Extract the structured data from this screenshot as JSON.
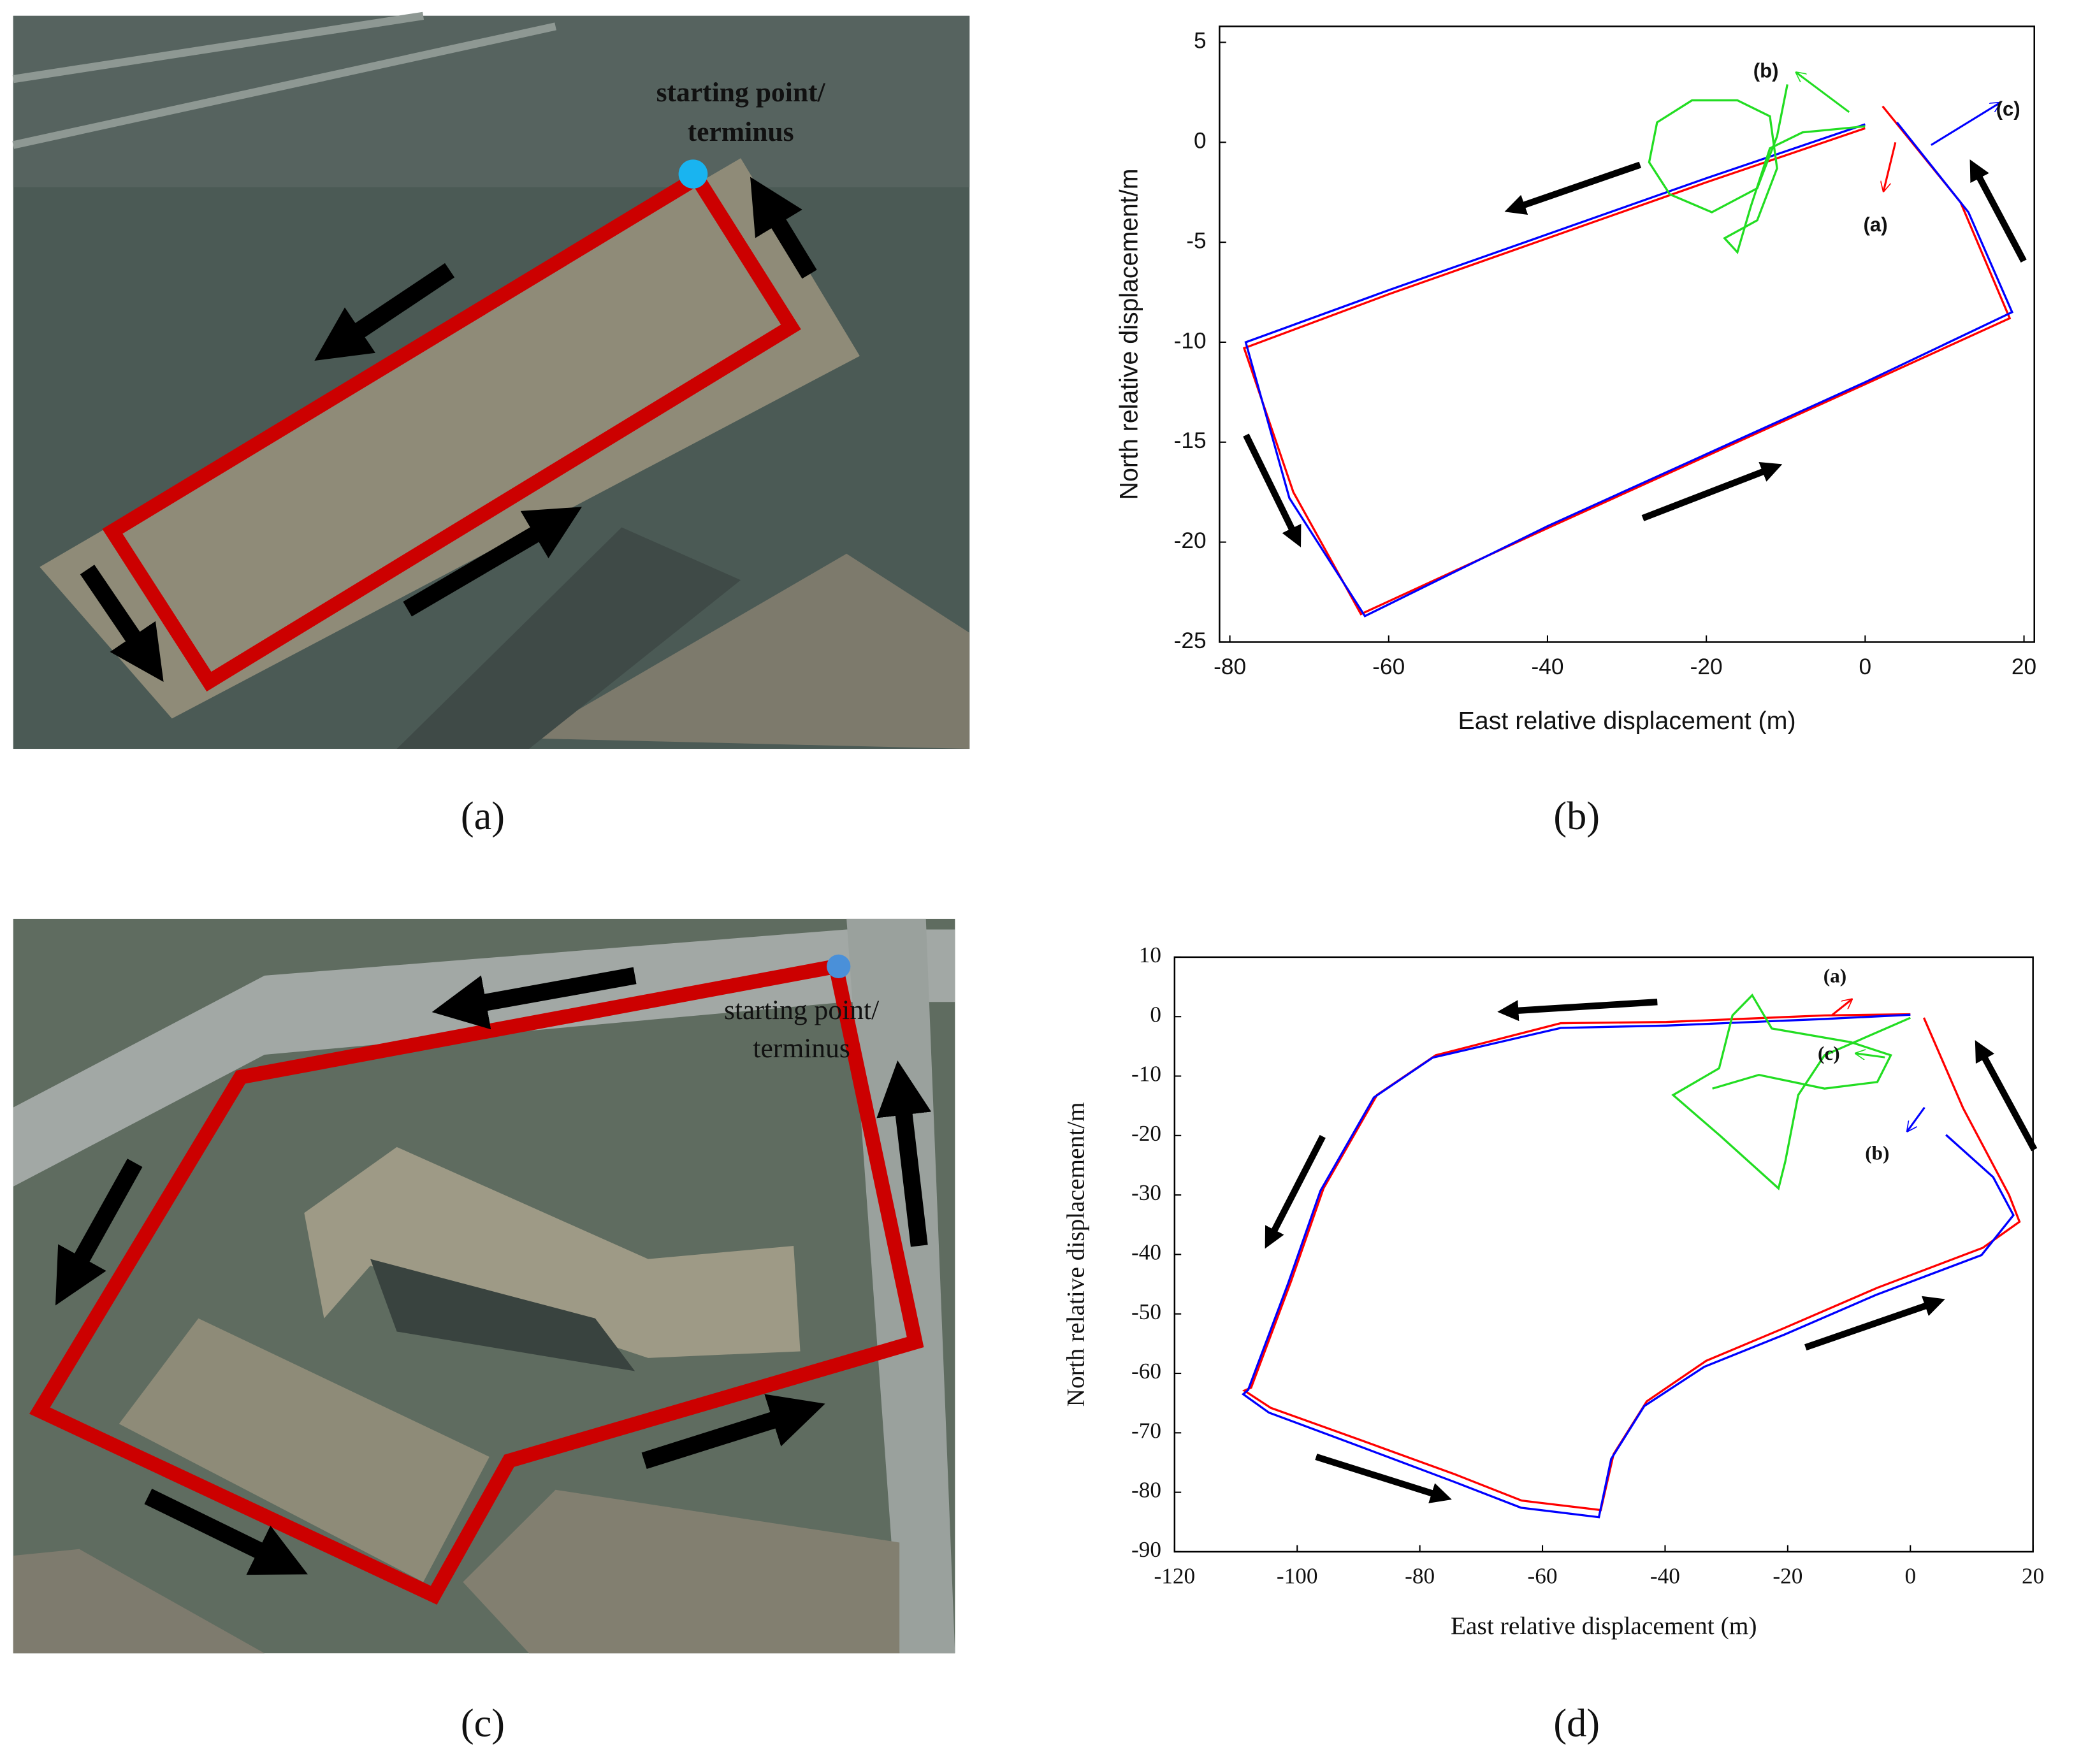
{
  "panel_labels": [
    "(a)",
    "(b)",
    "(c)",
    "(d)"
  ],
  "images": [
    {
      "label": [
        "starting point/",
        "terminus"
      ]
    },
    {
      "label": [
        "starting point/",
        "terminus"
      ]
    }
  ],
  "chart_data": [
    {
      "type": "line",
      "font": "sans",
      "xlabel": "East relative displacement (m)",
      "ylabel": "North relative displacement/m",
      "xlim": [
        -81.3,
        21.3
      ],
      "ylim": [
        -25,
        5.8
      ],
      "xticks": [
        -80,
        -60,
        -40,
        -20,
        0,
        20
      ],
      "yticks": [
        5,
        0,
        -5,
        -10,
        -15,
        -20,
        -25
      ],
      "series": [
        {
          "color": "#ff0000",
          "x": [
            0,
            -20,
            -40,
            -60,
            -78.2,
            -72,
            -63.5,
            -40,
            -20,
            0,
            18.2,
            12,
            2.2
          ],
          "values": [
            0.7,
            -2.0,
            -4.8,
            -7.6,
            -10.3,
            -17.5,
            -23.6,
            -19.3,
            -15.7,
            -12.1,
            -8.8,
            -3,
            1.8
          ]
        },
        {
          "color": "#0000ff",
          "x": [
            0,
            -20,
            -40,
            -60,
            -78,
            -72.5,
            -63,
            -40,
            -20,
            0,
            18.5,
            13,
            4
          ],
          "values": [
            0.9,
            -1.8,
            -4.6,
            -7.4,
            -10,
            -17.8,
            -23.7,
            -19.2,
            -15.6,
            -12,
            -8.5,
            -3.5,
            1
          ]
        },
        {
          "color": "#22dd22",
          "x": [
            0,
            -7.9,
            -12,
            -14.4,
            -16.1,
            -17.7,
            -13.6,
            -11.1,
            -12,
            -16.1,
            -21.8,
            -26.2,
            -27.2,
            -24.6,
            -19.3,
            -13.6,
            -11.1,
            -9.8
          ],
          "values": [
            0.8,
            0.5,
            -0.3,
            -3.2,
            -5.5,
            -4.8,
            -3.9,
            -1.3,
            1.3,
            2.1,
            2.1,
            1,
            -1,
            -2.6,
            -3.5,
            -2.3,
            0.3,
            2.9
          ]
        }
      ],
      "annotations": [
        {
          "text": "(b)",
          "x": -12.5,
          "y": 3.5
        },
        {
          "text": "(c)",
          "x": 18,
          "y": 1.6
        },
        {
          "text": "(a)",
          "x": 1.3,
          "y": -4.2
        }
      ]
    },
    {
      "type": "line",
      "font": "serif",
      "xlabel": "East relative displacement (m)",
      "ylabel": "North relative displacement/m",
      "xlim": [
        -120,
        20
      ],
      "ylim": [
        -90,
        10
      ],
      "xticks": [
        -120,
        -100,
        -80,
        -60,
        -40,
        -20,
        0,
        20
      ],
      "yticks": [
        10,
        0,
        -10,
        -20,
        -30,
        -40,
        -50,
        -60,
        -70,
        -80,
        -90
      ],
      "series": [
        {
          "color": "#ff0000",
          "x": [
            0,
            -14,
            -39.8,
            -57,
            -77.4,
            -87,
            -95.7,
            -101,
            -107.5,
            -108.6,
            -104.3,
            -89.2,
            -74.2,
            -63.4,
            -50.5,
            -48.4,
            -43,
            -33.3,
            -20.4,
            -5.4,
            11.8,
            17.8,
            16.1,
            8.6,
            2.2
          ],
          "values": [
            0.4,
            0.2,
            -0.9,
            -1.1,
            -6.5,
            -13.2,
            -28.9,
            -44.5,
            -62.4,
            -62.9,
            -65.8,
            -71.4,
            -77,
            -81.4,
            -83,
            -73.6,
            -64.7,
            -57.9,
            -52.3,
            -45.6,
            -38.9,
            -34.5,
            -30,
            -15.4,
            -0.2
          ]
        },
        {
          "color": "#0000ff",
          "x": [
            0,
            -14,
            -39.8,
            -57,
            -77.9,
            -87.5,
            -96.2,
            -101.5,
            -108,
            -108.8,
            -104.6,
            -89.5,
            -74.5,
            -63.5,
            -50.8,
            -48.8,
            -43.4,
            -33.6,
            -20.6,
            -5.6,
            11.6,
            16.8,
            13.5,
            5.8
          ],
          "values": [
            0.3,
            -0.4,
            -1.5,
            -1.9,
            -6.9,
            -13.6,
            -29.3,
            -44.9,
            -62.8,
            -63.5,
            -66.6,
            -72.4,
            -78.2,
            -82.6,
            -84.2,
            -74.4,
            -65.5,
            -58.9,
            -53.5,
            -46.8,
            -40.1,
            -33.4,
            -27,
            -19.9
          ]
        },
        {
          "color": "#22dd22",
          "x": [
            0,
            -14,
            -18.3,
            -20.4,
            -21.5,
            -31.2,
            -38.7,
            -31.2,
            -29,
            -25.8,
            -22.6,
            -9.7,
            -3.2,
            -5.4,
            -14,
            -24.7,
            -32.3
          ],
          "values": [
            -0.2,
            -6.5,
            -13.2,
            -24.4,
            -28.9,
            -19.9,
            -13.2,
            -8.7,
            0.2,
            3.6,
            -2,
            -4.3,
            -6.5,
            -11,
            -12.1,
            -9.8,
            -12.1
          ]
        }
      ],
      "annotations": [
        {
          "text": "(a)",
          "x": -12.3,
          "y": 6.5
        },
        {
          "text": "(c)",
          "x": -13.3,
          "y": -6.5
        },
        {
          "text": "(b)",
          "x": -5.4,
          "y": -23.3
        }
      ]
    }
  ]
}
